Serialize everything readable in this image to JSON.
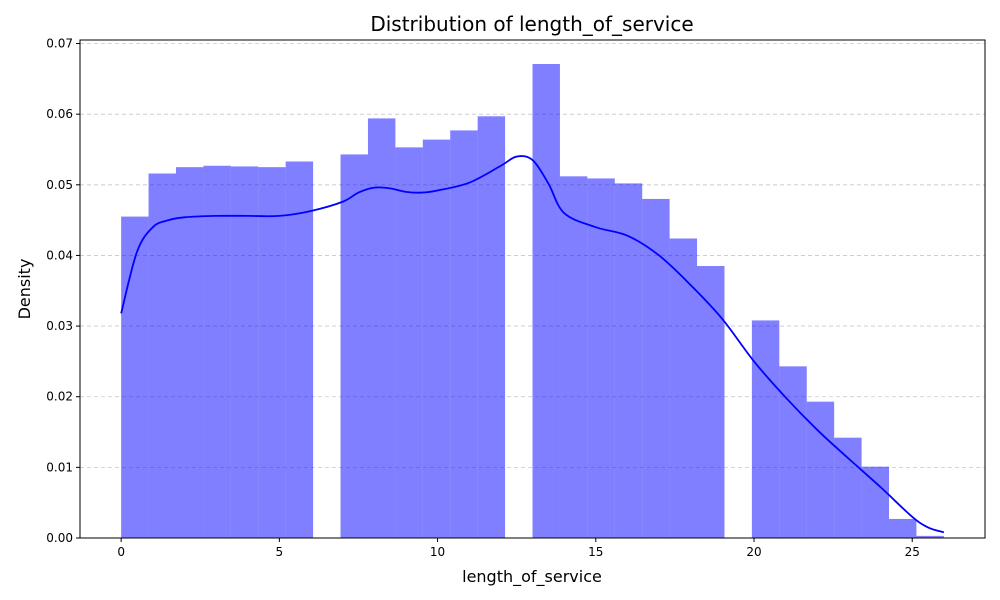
{
  "chart_data": {
    "type": "bar",
    "title": "Distribution of length_of_service",
    "xlabel": "length_of_service",
    "ylabel": "Density",
    "xlim": [
      -1.3,
      27.3
    ],
    "ylim": [
      0,
      0.0705
    ],
    "xticks": [
      0,
      5,
      10,
      15,
      20,
      25
    ],
    "yticks": [
      0.0,
      0.01,
      0.02,
      0.03,
      0.04,
      0.05,
      0.06,
      0.07
    ],
    "ytick_labels": [
      "0.00",
      "0.01",
      "0.02",
      "0.03",
      "0.04",
      "0.05",
      "0.06",
      "0.07"
    ],
    "grid": "y-dashed",
    "bar_color": "#0000ff",
    "bar_alpha": 0.5,
    "line_color": "#0000ff",
    "histogram": {
      "bin_edges": [
        0.0,
        0.867,
        1.733,
        2.6,
        3.467,
        4.333,
        5.2,
        6.067,
        6.933,
        7.8,
        8.667,
        9.533,
        10.4,
        11.267,
        12.133,
        13.0,
        13.867,
        14.733,
        15.6,
        16.467,
        17.333,
        18.2,
        19.067,
        19.933,
        20.8,
        21.667,
        22.533,
        23.4,
        24.267,
        25.133,
        26.0
      ],
      "values": [
        0.0455,
        0.0516,
        0.0525,
        0.0527,
        0.0526,
        0.0525,
        0.0533,
        0.0,
        0.0543,
        0.0594,
        0.0553,
        0.0564,
        0.0577,
        0.0597,
        0.0,
        0.0671,
        0.0512,
        0.0509,
        0.0502,
        0.048,
        0.0424,
        0.0385,
        0.0,
        0.0308,
        0.0243,
        0.0193,
        0.0142,
        0.0101,
        0.0027,
        0.0003
      ]
    },
    "kde": {
      "x": [
        0,
        0.5,
        1,
        1.5,
        2,
        3,
        4,
        5,
        6,
        7,
        7.5,
        8,
        8.5,
        9,
        9.5,
        10,
        11,
        12,
        12.5,
        13,
        13.5,
        14,
        15,
        16,
        17,
        18,
        19,
        20,
        21,
        22,
        23,
        24,
        25,
        25.5,
        26
      ],
      "y": [
        0.0318,
        0.0405,
        0.044,
        0.045,
        0.0454,
        0.0456,
        0.0456,
        0.0456,
        0.0463,
        0.0476,
        0.0489,
        0.0496,
        0.0495,
        0.049,
        0.0489,
        0.0492,
        0.0503,
        0.0527,
        0.054,
        0.0535,
        0.0502,
        0.046,
        0.044,
        0.0428,
        0.04,
        0.0358,
        0.031,
        0.025,
        0.0199,
        0.0153,
        0.0112,
        0.0072,
        0.003,
        0.0015,
        0.0008
      ]
    }
  }
}
